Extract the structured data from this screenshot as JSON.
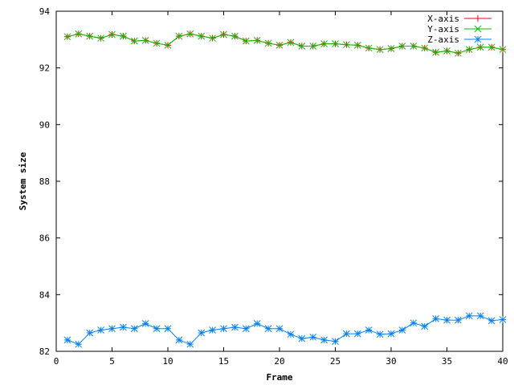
{
  "chart_data": {
    "type": "line",
    "xlabel": "Frame",
    "ylabel": "System size",
    "xlim": [
      0,
      40
    ],
    "ylim": [
      82,
      94
    ],
    "x_ticks": [
      0,
      5,
      10,
      15,
      20,
      25,
      30,
      35,
      40
    ],
    "y_ticks": [
      82,
      84,
      86,
      88,
      90,
      92,
      94
    ],
    "grid": false,
    "legend_position": "top-right",
    "x": [
      1,
      2,
      3,
      4,
      5,
      6,
      7,
      8,
      9,
      10,
      11,
      12,
      13,
      14,
      15,
      16,
      17,
      18,
      19,
      20,
      21,
      22,
      23,
      24,
      25,
      26,
      27,
      28,
      29,
      30,
      31,
      32,
      33,
      34,
      35,
      36,
      37,
      38,
      39,
      40
    ],
    "series": [
      {
        "name": "X-axis",
        "color": "#ff0000",
        "marker": "plus",
        "values": [
          93.1,
          93.2,
          93.12,
          93.05,
          93.18,
          93.12,
          92.95,
          92.97,
          92.87,
          92.8,
          93.12,
          93.2,
          93.12,
          93.05,
          93.18,
          93.12,
          92.95,
          92.97,
          92.87,
          92.8,
          92.9,
          92.77,
          92.77,
          92.85,
          92.85,
          92.82,
          92.8,
          92.7,
          92.65,
          92.68,
          92.77,
          92.77,
          92.7,
          92.55,
          92.6,
          92.52,
          92.65,
          92.73,
          92.73,
          92.65
        ]
      },
      {
        "name": "Y-axis",
        "color": "#00c000",
        "marker": "cross",
        "values": [
          93.1,
          93.2,
          93.12,
          93.05,
          93.18,
          93.12,
          92.95,
          92.97,
          92.87,
          92.8,
          93.12,
          93.2,
          93.12,
          93.05,
          93.18,
          93.12,
          92.95,
          92.97,
          92.87,
          92.8,
          92.9,
          92.77,
          92.77,
          92.85,
          92.85,
          92.82,
          92.8,
          92.7,
          92.65,
          92.68,
          92.77,
          92.77,
          92.7,
          92.55,
          92.6,
          92.52,
          92.65,
          92.73,
          92.73,
          92.65
        ]
      },
      {
        "name": "Z-axis",
        "color": "#0080ff",
        "marker": "star",
        "values": [
          82.4,
          82.25,
          82.65,
          82.75,
          82.8,
          82.85,
          82.8,
          82.98,
          82.8,
          82.8,
          82.4,
          82.25,
          82.65,
          82.75,
          82.8,
          82.85,
          82.8,
          82.98,
          82.8,
          82.8,
          82.6,
          82.45,
          82.5,
          82.4,
          82.35,
          82.62,
          82.62,
          82.75,
          82.6,
          82.62,
          82.75,
          83.0,
          82.88,
          83.15,
          83.1,
          83.1,
          83.25,
          83.25,
          83.08,
          83.12
        ]
      }
    ]
  }
}
